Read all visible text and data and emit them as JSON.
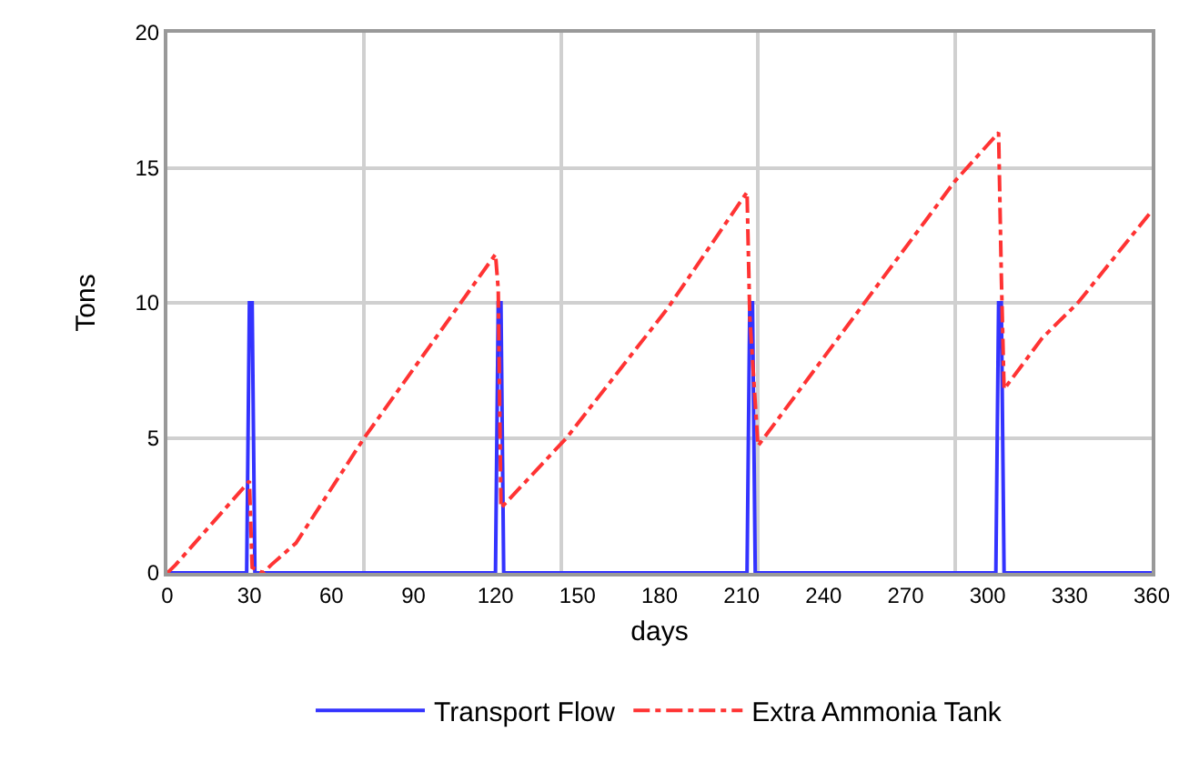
{
  "chart_data": {
    "type": "line",
    "xlabel": "days",
    "ylabel": "Tons",
    "xlim": [
      0,
      360
    ],
    "ylim": [
      0,
      20
    ],
    "xticks": [
      0,
      30,
      60,
      {
        "value": 72,
        "label": null
      },
      90,
      120,
      {
        "value": 144,
        "label": null
      },
      150,
      180,
      210,
      {
        "value": 216,
        "label": null
      },
      240,
      270,
      {
        "value": 288,
        "label": null
      },
      300,
      330,
      360
    ],
    "yticks": [
      0,
      5,
      10,
      15,
      20
    ],
    "grid": true,
    "legend": "bottom",
    "marker": "none",
    "series": [
      {
        "name": "Transport Flow",
        "color": "#3333ff",
        "line_style": "solid",
        "x": [
          0,
          29,
          30,
          31,
          32,
          120,
          121,
          122,
          123,
          212,
          213,
          214,
          215,
          303,
          304,
          305,
          306,
          360
        ],
        "values": [
          0,
          0,
          10,
          10,
          0,
          0,
          10,
          10,
          0,
          0,
          10,
          10,
          0,
          0,
          10,
          10,
          0,
          0
        ]
      },
      {
        "name": "Extra Ammonia Tank",
        "color": "#ff3333",
        "line_style": "dashdot",
        "x": [
          0,
          3,
          30,
          31,
          35,
          38,
          47,
          72,
          120,
          121,
          122,
          146,
          183,
          212,
          213,
          216,
          288,
          304,
          305,
          306,
          320,
          333,
          360
        ],
        "values": [
          0,
          0.3,
          3.4,
          0.2,
          0,
          0.3,
          1.1,
          5,
          11.8,
          10.5,
          2.4,
          5,
          9.8,
          14.1,
          9.5,
          4.7,
          14.5,
          16.3,
          11,
          6.8,
          8.7,
          10,
          13.4
        ]
      }
    ]
  }
}
